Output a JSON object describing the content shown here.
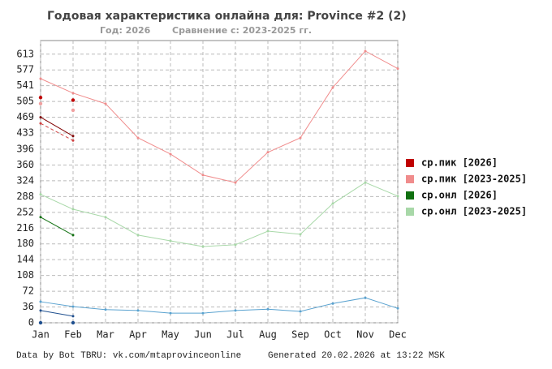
{
  "chart_data": {
    "type": "line",
    "title": "Годовая характеристика онлайна для: Province #2 (2)",
    "subtitle": [
      "Год: 2026",
      "Сравнение с: 2023-2025 гг."
    ],
    "footer": [
      "Data by Bot TBRU: vk.com/mtaprovinceonline",
      "Generated 20.02.2026 at 13:22 MSK"
    ],
    "categories": [
      "Jan",
      "Feb",
      "Mar",
      "Apr",
      "May",
      "Jun",
      "Jul",
      "Aug",
      "Sep",
      "Oct",
      "Nov",
      "Dec"
    ],
    "ylim": [
      0,
      644
    ],
    "yticks": [
      0,
      36,
      72,
      108,
      144,
      180,
      216,
      252,
      288,
      324,
      360,
      396,
      433,
      469,
      505,
      541,
      577,
      613
    ],
    "grid": true,
    "legend": "right",
    "series": [
      {
        "name": "ср.пик [2026]",
        "color": "#c00000",
        "style": "markers",
        "values": [
          514,
          508,
          null,
          null,
          null,
          null,
          null,
          null,
          null,
          null,
          null,
          null
        ]
      },
      {
        "name": "ср.пик [2023-2025]",
        "color": "#f08c8c",
        "style": "line",
        "values": [
          557,
          524,
          500,
          422,
          385,
          337,
          320,
          389,
          422,
          537,
          620,
          580
        ]
      },
      {
        "name": "ср.онл [2026]",
        "color": "#107010",
        "style": "line",
        "values": [
          241,
          200,
          null,
          null,
          null,
          null,
          null,
          null,
          null,
          null,
          null,
          null
        ]
      },
      {
        "name": "ср.онл [2023-2025]",
        "color": "#a8d8a8",
        "style": "line",
        "values": [
          293,
          259,
          241,
          200,
          187,
          174,
          178,
          209,
          202,
          272,
          320,
          289
        ]
      },
      {
        "color": "#800000",
        "style": "line",
        "values": [
          469,
          426,
          null,
          null,
          null,
          null,
          null,
          null,
          null,
          null,
          null,
          null
        ]
      },
      {
        "color": "#d04040",
        "style": "dashed",
        "values": [
          455,
          416,
          null,
          null,
          null,
          null,
          null,
          null,
          null,
          null,
          null,
          null
        ]
      },
      {
        "color": "#f0a0a0",
        "style": "markers",
        "values": [
          500,
          485,
          null,
          null,
          null,
          null,
          null,
          null,
          null,
          null,
          null,
          null
        ]
      },
      {
        "color": "#5ba3d0",
        "style": "line",
        "values": [
          48,
          37,
          30,
          28,
          22,
          22,
          28,
          31,
          26,
          44,
          57,
          33
        ]
      },
      {
        "color": "#1f4f8f",
        "style": "line",
        "values": [
          28,
          15,
          null,
          null,
          null,
          null,
          null,
          null,
          null,
          null,
          null,
          null
        ]
      },
      {
        "color": "#1f4f8f",
        "style": "markers",
        "values": [
          0,
          0,
          null,
          null,
          null,
          null,
          null,
          null,
          null,
          null,
          null,
          null
        ]
      }
    ]
  }
}
